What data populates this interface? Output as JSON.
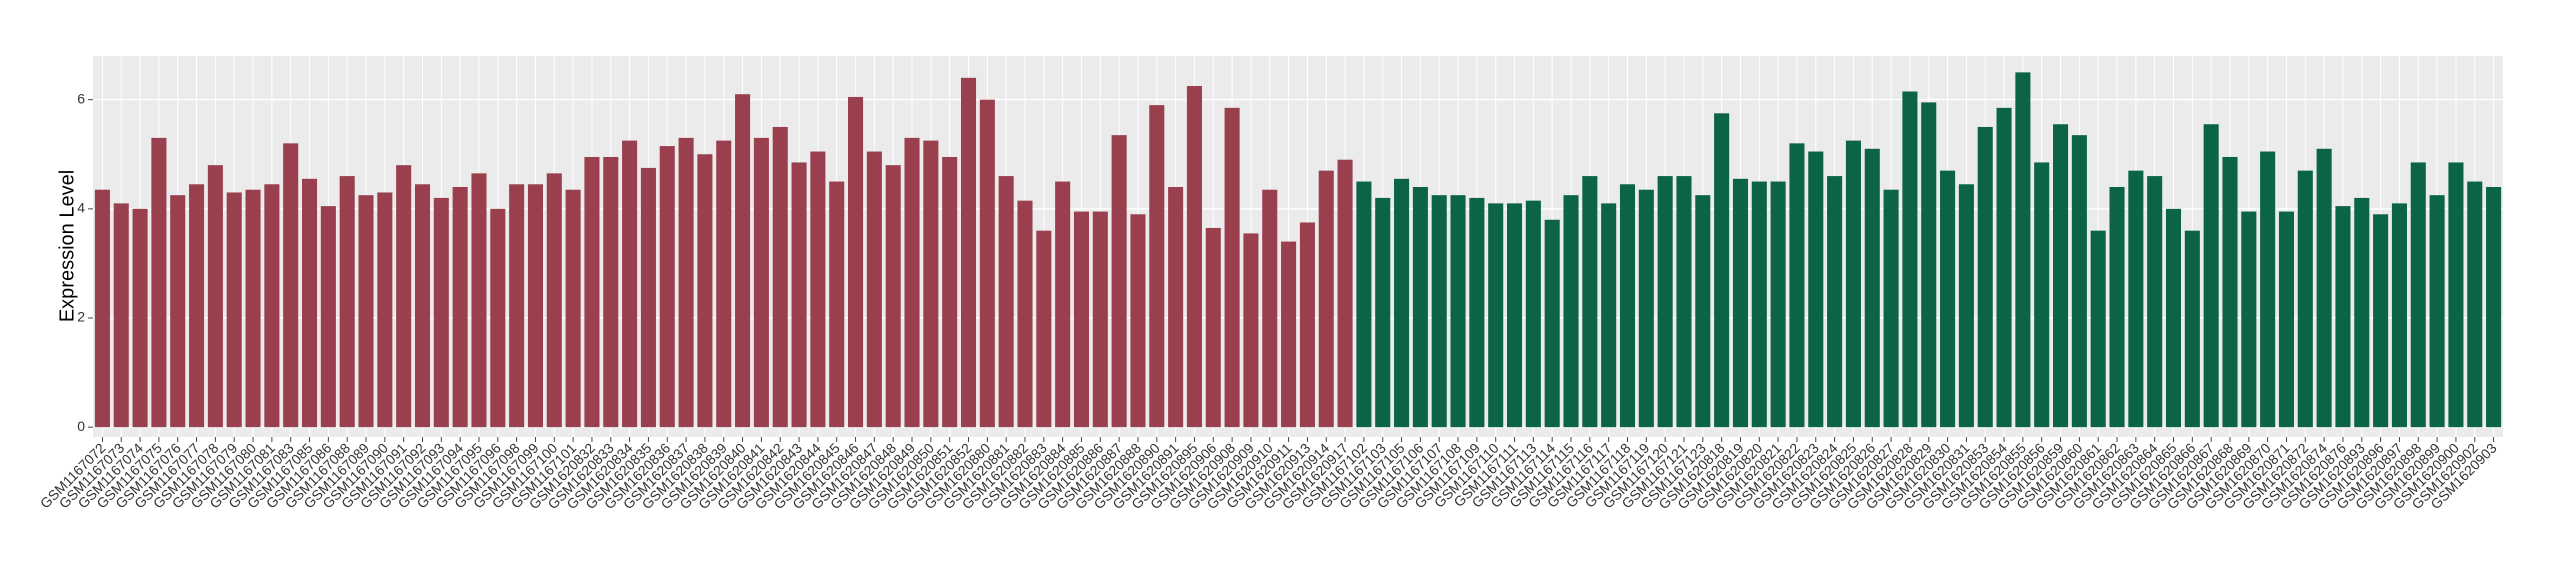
{
  "chart_data": {
    "type": "bar",
    "y_label": "Expression Level",
    "categories": [
      "GSM1167072",
      "GSM1167073",
      "GSM1167074",
      "GSM1167075",
      "GSM1167076",
      "GSM1167077",
      "GSM1167078",
      "GSM1167079",
      "GSM1167080",
      "GSM1167081",
      "GSM1167083",
      "GSM1167085",
      "GSM1167086",
      "GSM1167088",
      "GSM1167089",
      "GSM1167090",
      "GSM1167091",
      "GSM1167092",
      "GSM1167093",
      "GSM1167094",
      "GSM1167095",
      "GSM1167096",
      "GSM1167098",
      "GSM1167099",
      "GSM1167100",
      "GSM1167101",
      "GSM1620832",
      "GSM1620833",
      "GSM1620834",
      "GSM1620835",
      "GSM1620836",
      "GSM1620837",
      "GSM1620838",
      "GSM1620839",
      "GSM1620840",
      "GSM1620841",
      "GSM1620842",
      "GSM1620843",
      "GSM1620844",
      "GSM1620845",
      "GSM1620846",
      "GSM1620847",
      "GSM1620848",
      "GSM1620849",
      "GSM1620850",
      "GSM1620851",
      "GSM1620852",
      "GSM1620880",
      "GSM1620881",
      "GSM1620882",
      "GSM1620883",
      "GSM1620884",
      "GSM1620885",
      "GSM1620886",
      "GSM1620887",
      "GSM1620888",
      "GSM1620890",
      "GSM1620891",
      "GSM1620895",
      "GSM1620906",
      "GSM1620908",
      "GSM1620909",
      "GSM1620910",
      "GSM1620911",
      "GSM1620913",
      "GSM1620914",
      "GSM1620917",
      "GSM1167102",
      "GSM1167103",
      "GSM1167105",
      "GSM1167106",
      "GSM1167107",
      "GSM1167108",
      "GSM1167109",
      "GSM1167110",
      "GSM1167111",
      "GSM1167113",
      "GSM1167114",
      "GSM1167115",
      "GSM1167116",
      "GSM1167117",
      "GSM1167118",
      "GSM1167119",
      "GSM1167120",
      "GSM1167121",
      "GSM1167123",
      "GSM1620818",
      "GSM1620819",
      "GSM1620820",
      "GSM1620821",
      "GSM1620822",
      "GSM1620823",
      "GSM1620824",
      "GSM1620825",
      "GSM1620826",
      "GSM1620827",
      "GSM1620828",
      "GSM1620829",
      "GSM1620830",
      "GSM1620831",
      "GSM1620853",
      "GSM1620854",
      "GSM1620855",
      "GSM1620856",
      "GSM1620859",
      "GSM1620860",
      "GSM1620861",
      "GSM1620862",
      "GSM1620863",
      "GSM1620864",
      "GSM1620865",
      "GSM1620866",
      "GSM1620867",
      "GSM1620868",
      "GSM1620869",
      "GSM1620870",
      "GSM1620871",
      "GSM1620872",
      "GSM1620874",
      "GSM1620876",
      "GSM1620893",
      "GSM1620896",
      "GSM1620897",
      "GSM1620898",
      "GSM1620899",
      "GSM1620900",
      "GSM1620902",
      "GSM1620903"
    ],
    "series": [
      {
        "color": "#993f4e",
        "values": [
          4.35,
          4.1,
          4.0,
          5.3,
          4.25,
          4.45,
          4.8,
          4.3,
          4.35,
          4.45,
          5.2,
          4.55,
          4.05,
          4.6,
          4.25,
          4.3,
          4.8,
          4.45,
          4.2,
          4.4,
          4.65,
          4.0,
          4.45,
          4.45,
          4.65,
          4.35,
          4.95,
          4.95,
          5.25,
          4.75,
          5.15,
          5.3,
          5.0,
          5.25,
          6.1,
          5.3,
          5.5,
          4.85,
          5.05,
          4.5,
          6.05,
          5.05,
          4.8,
          5.3,
          5.25,
          4.95,
          6.4,
          6.0,
          4.6,
          4.15,
          3.6,
          4.5,
          3.95,
          3.95,
          5.35,
          3.9,
          5.9,
          4.4,
          6.25,
          3.65,
          5.85,
          3.55,
          4.35,
          3.4,
          3.75,
          4.7,
          4.9,
          null,
          null,
          null,
          null,
          null,
          null,
          null,
          null,
          null,
          null,
          null,
          null,
          null,
          null,
          null,
          null,
          null,
          null,
          null,
          null,
          null,
          null,
          null,
          null,
          null,
          null,
          null,
          null,
          null,
          null,
          null,
          null,
          null,
          null,
          null,
          null,
          null,
          null,
          null,
          null,
          null,
          null,
          null,
          null,
          null,
          null,
          null,
          null,
          null,
          null,
          null,
          null,
          null,
          null,
          null,
          null,
          null,
          null,
          null,
          null,
          null
        ]
      },
      {
        "color": "#0b6446",
        "values": [
          null,
          null,
          null,
          null,
          null,
          null,
          null,
          null,
          null,
          null,
          null,
          null,
          null,
          null,
          null,
          null,
          null,
          null,
          null,
          null,
          null,
          null,
          null,
          null,
          null,
          null,
          null,
          null,
          null,
          null,
          null,
          null,
          null,
          null,
          null,
          null,
          null,
          null,
          null,
          null,
          null,
          null,
          null,
          null,
          null,
          null,
          null,
          null,
          null,
          null,
          null,
          null,
          null,
          null,
          null,
          null,
          null,
          null,
          null,
          null,
          null,
          null,
          null,
          null,
          null,
          null,
          null,
          4.5,
          4.2,
          4.55,
          4.4,
          4.25,
          4.25,
          4.2,
          4.1,
          4.1,
          4.15,
          3.8,
          4.25,
          4.6,
          4.1,
          4.45,
          4.35,
          4.6,
          4.6,
          4.25,
          5.75,
          4.55,
          4.5,
          4.5,
          5.2,
          5.05,
          4.6,
          5.25,
          5.1,
          4.35,
          6.15,
          5.95,
          4.7,
          4.45,
          5.5,
          5.85,
          6.5,
          4.85,
          5.55,
          5.35,
          3.6,
          4.4,
          4.7,
          4.6,
          4.0,
          3.6,
          5.55,
          4.95,
          3.95,
          5.05,
          3.95,
          4.7,
          5.1,
          4.05,
          4.2,
          3.9,
          4.1,
          4.85,
          4.25,
          4.85,
          4.5,
          4.4
        ]
      }
    ],
    "ylim": [
      -0.18,
      6.8
    ],
    "yticks": [
      0,
      2,
      4,
      6
    ],
    "grid": true
  }
}
